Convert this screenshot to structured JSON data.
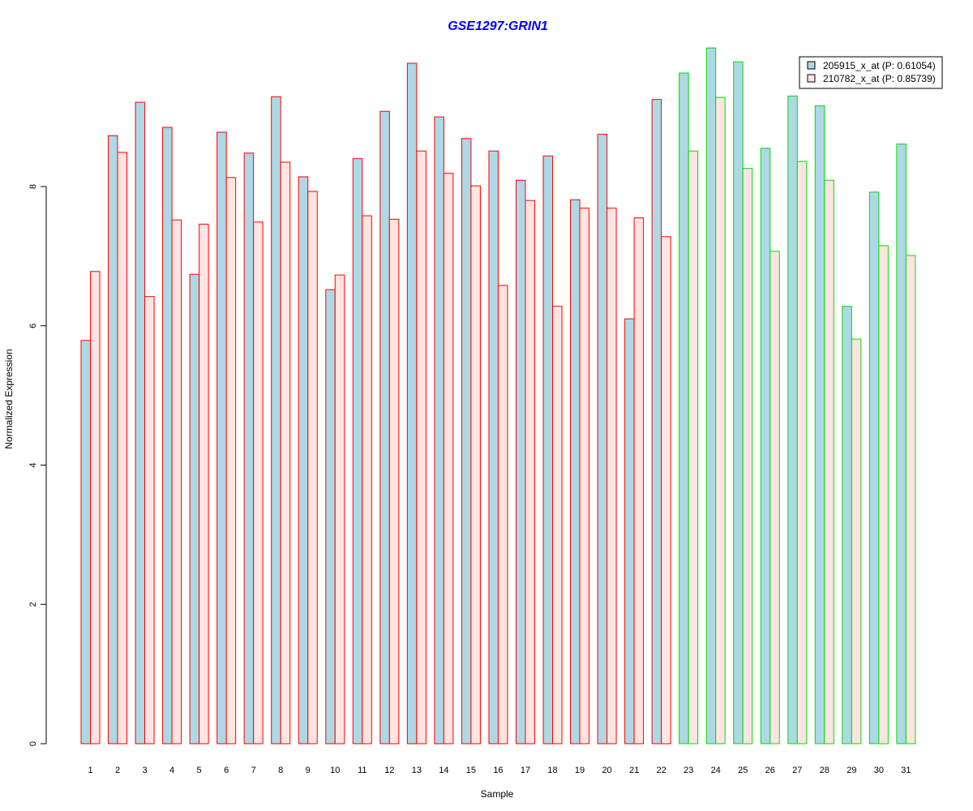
{
  "chart_data": {
    "type": "bar",
    "title": "GSE1297:GRIN1",
    "xlabel": "Sample",
    "ylabel": "Normalized Expression",
    "ylim": [
      0,
      10
    ],
    "yticks": [
      0,
      2,
      4,
      6,
      8
    ],
    "categories": [
      "1",
      "2",
      "3",
      "4",
      "5",
      "6",
      "7",
      "8",
      "9",
      "10",
      "11",
      "12",
      "13",
      "14",
      "15",
      "16",
      "17",
      "18",
      "19",
      "20",
      "21",
      "22",
      "23",
      "24",
      "25",
      "26",
      "27",
      "28",
      "29",
      "30",
      "31"
    ],
    "group_border_colors": [
      "#ff0000",
      "#ff0000",
      "#ff0000",
      "#ff0000",
      "#ff0000",
      "#ff0000",
      "#ff0000",
      "#ff0000",
      "#ff0000",
      "#ff0000",
      "#ff0000",
      "#ff0000",
      "#ff0000",
      "#ff0000",
      "#ff0000",
      "#ff0000",
      "#ff0000",
      "#ff0000",
      "#ff0000",
      "#ff0000",
      "#ff0000",
      "#ff0000",
      "#00dd00",
      "#00dd00",
      "#00dd00",
      "#00dd00",
      "#00dd00",
      "#00dd00",
      "#00dd00",
      "#00dd00",
      "#00dd00"
    ],
    "series": [
      {
        "name": "205915_x_at (P: 0.61054)",
        "color": "#add8e6",
        "values": [
          5.79,
          8.73,
          9.21,
          8.85,
          6.74,
          8.78,
          8.48,
          9.29,
          8.14,
          6.52,
          8.4,
          9.08,
          9.77,
          9.0,
          8.69,
          8.51,
          8.09,
          8.44,
          7.81,
          8.75,
          6.1,
          9.25,
          9.63,
          9.99,
          9.79,
          8.55,
          9.3,
          9.16,
          6.28,
          7.92,
          8.61
        ]
      },
      {
        "name": "210782_x_at (P: 0.85739)",
        "color": "#ffe4e1",
        "values": [
          6.78,
          8.49,
          6.42,
          7.52,
          7.46,
          8.13,
          7.49,
          8.35,
          7.93,
          6.73,
          7.58,
          7.53,
          8.51,
          8.19,
          8.01,
          6.58,
          7.8,
          6.28,
          7.69,
          7.69,
          7.55,
          7.28,
          8.51,
          9.28,
          8.26,
          7.07,
          8.36,
          8.09,
          5.81,
          7.15,
          7.01
        ]
      }
    ],
    "legend_position": "top-right",
    "grid": false
  }
}
